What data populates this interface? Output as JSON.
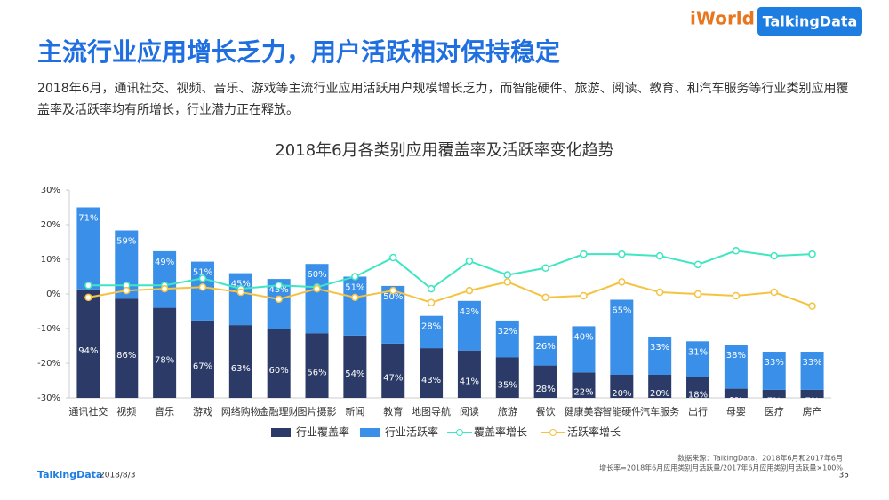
{
  "header": {
    "title": "主流行业应用增长乏力，用户活跃相对保持稳定",
    "subtitle": "2018年6月，通讯社交、视频、音乐、游戏等主流行业应用活跃用户规模增长乏力，而智能硬件、旅游、阅读、教育、和汽车服务等行业类别应用覆盖率及活跃率均有所增长，行业潜力正在释放。"
  },
  "logos": {
    "event": "iWorld",
    "brand": "TalkingData"
  },
  "footer": {
    "logo": "TalkingData",
    "date": "2018/8/3",
    "page": "35",
    "source": "数据来源：TalkingData，2018年6月和2017年6月",
    "note": "增长率=2018年6月应用类别月活跃量/2017年6月应用类别月活跃量×100%"
  },
  "chart_data": {
    "type": "bar",
    "title": "2018年6月各类别应用覆盖率及活跃率变化趋势",
    "categories": [
      "通讯社交",
      "视频",
      "音乐",
      "游戏",
      "网络购物",
      "金融理财",
      "图片摄影",
      "新闻",
      "教育",
      "地图导航",
      "阅读",
      "旅游",
      "餐饮",
      "健康美容",
      "智能硬件",
      "汽车服务",
      "出行",
      "母婴",
      "医疗",
      "房产"
    ],
    "ylim": [
      -30,
      30
    ],
    "y2lim": [
      0,
      180
    ],
    "yticks": [
      {
        "value": 30,
        "label": "30%"
      },
      {
        "value": 20,
        "label": "20%"
      },
      {
        "value": 10,
        "label": "10%"
      },
      {
        "value": 0,
        "label": "0%"
      },
      {
        "value": -10,
        "label": "-10%"
      },
      {
        "value": -20,
        "label": "-20%"
      },
      {
        "value": -30,
        "label": "-30%"
      }
    ],
    "series": [
      {
        "name": "行业覆盖率",
        "type": "bar",
        "axis": "y2",
        "color": "#2b3a67",
        "values": [
          94,
          86,
          78,
          67,
          63,
          60,
          56,
          54,
          47,
          43,
          41,
          35,
          28,
          22,
          20,
          20,
          18,
          8,
          7,
          7
        ],
        "value_labels": [
          "94%",
          "86%",
          "78%",
          "67%",
          "63%",
          "60%",
          "56%",
          "54%",
          "47%",
          "43%",
          "41%",
          "35%",
          "28%",
          "22%",
          "20%",
          "20%",
          "18%",
          "8%",
          "7%",
          "7%"
        ]
      },
      {
        "name": "行业活跃率",
        "type": "bar",
        "axis": "y2",
        "color": "#3a8fe8",
        "values": [
          71,
          59,
          49,
          51,
          45,
          43,
          60,
          51,
          50,
          28,
          43,
          32,
          26,
          40,
          65,
          33,
          31,
          38,
          33,
          33
        ],
        "value_labels": [
          "71%",
          "59%",
          "49%",
          "51%",
          "45%",
          "43%",
          "60%",
          "51%",
          "50%",
          "28%",
          "43%",
          "32%",
          "26%",
          "40%",
          "65%",
          "33%",
          "31%",
          "38%",
          "33%",
          "33%"
        ]
      },
      {
        "name": "覆盖率增长",
        "type": "line",
        "color": "#3ee6c1",
        "values": [
          2.5,
          2.5,
          2.5,
          4.5,
          1.5,
          2.5,
          2,
          5,
          10.5,
          1.5,
          9.5,
          5.5,
          7.5,
          11.5,
          11.5,
          11,
          8.5,
          12.5,
          11,
          11.5
        ]
      },
      {
        "name": "活跃率增长",
        "type": "line",
        "color": "#f5c342",
        "values": [
          -1,
          1,
          1.5,
          2,
          0.5,
          -1.5,
          1.5,
          -1,
          1,
          -2.5,
          1,
          3.5,
          -1,
          -0.5,
          3.5,
          0.5,
          0,
          -0.5,
          0.5,
          -3.5
        ]
      }
    ]
  }
}
